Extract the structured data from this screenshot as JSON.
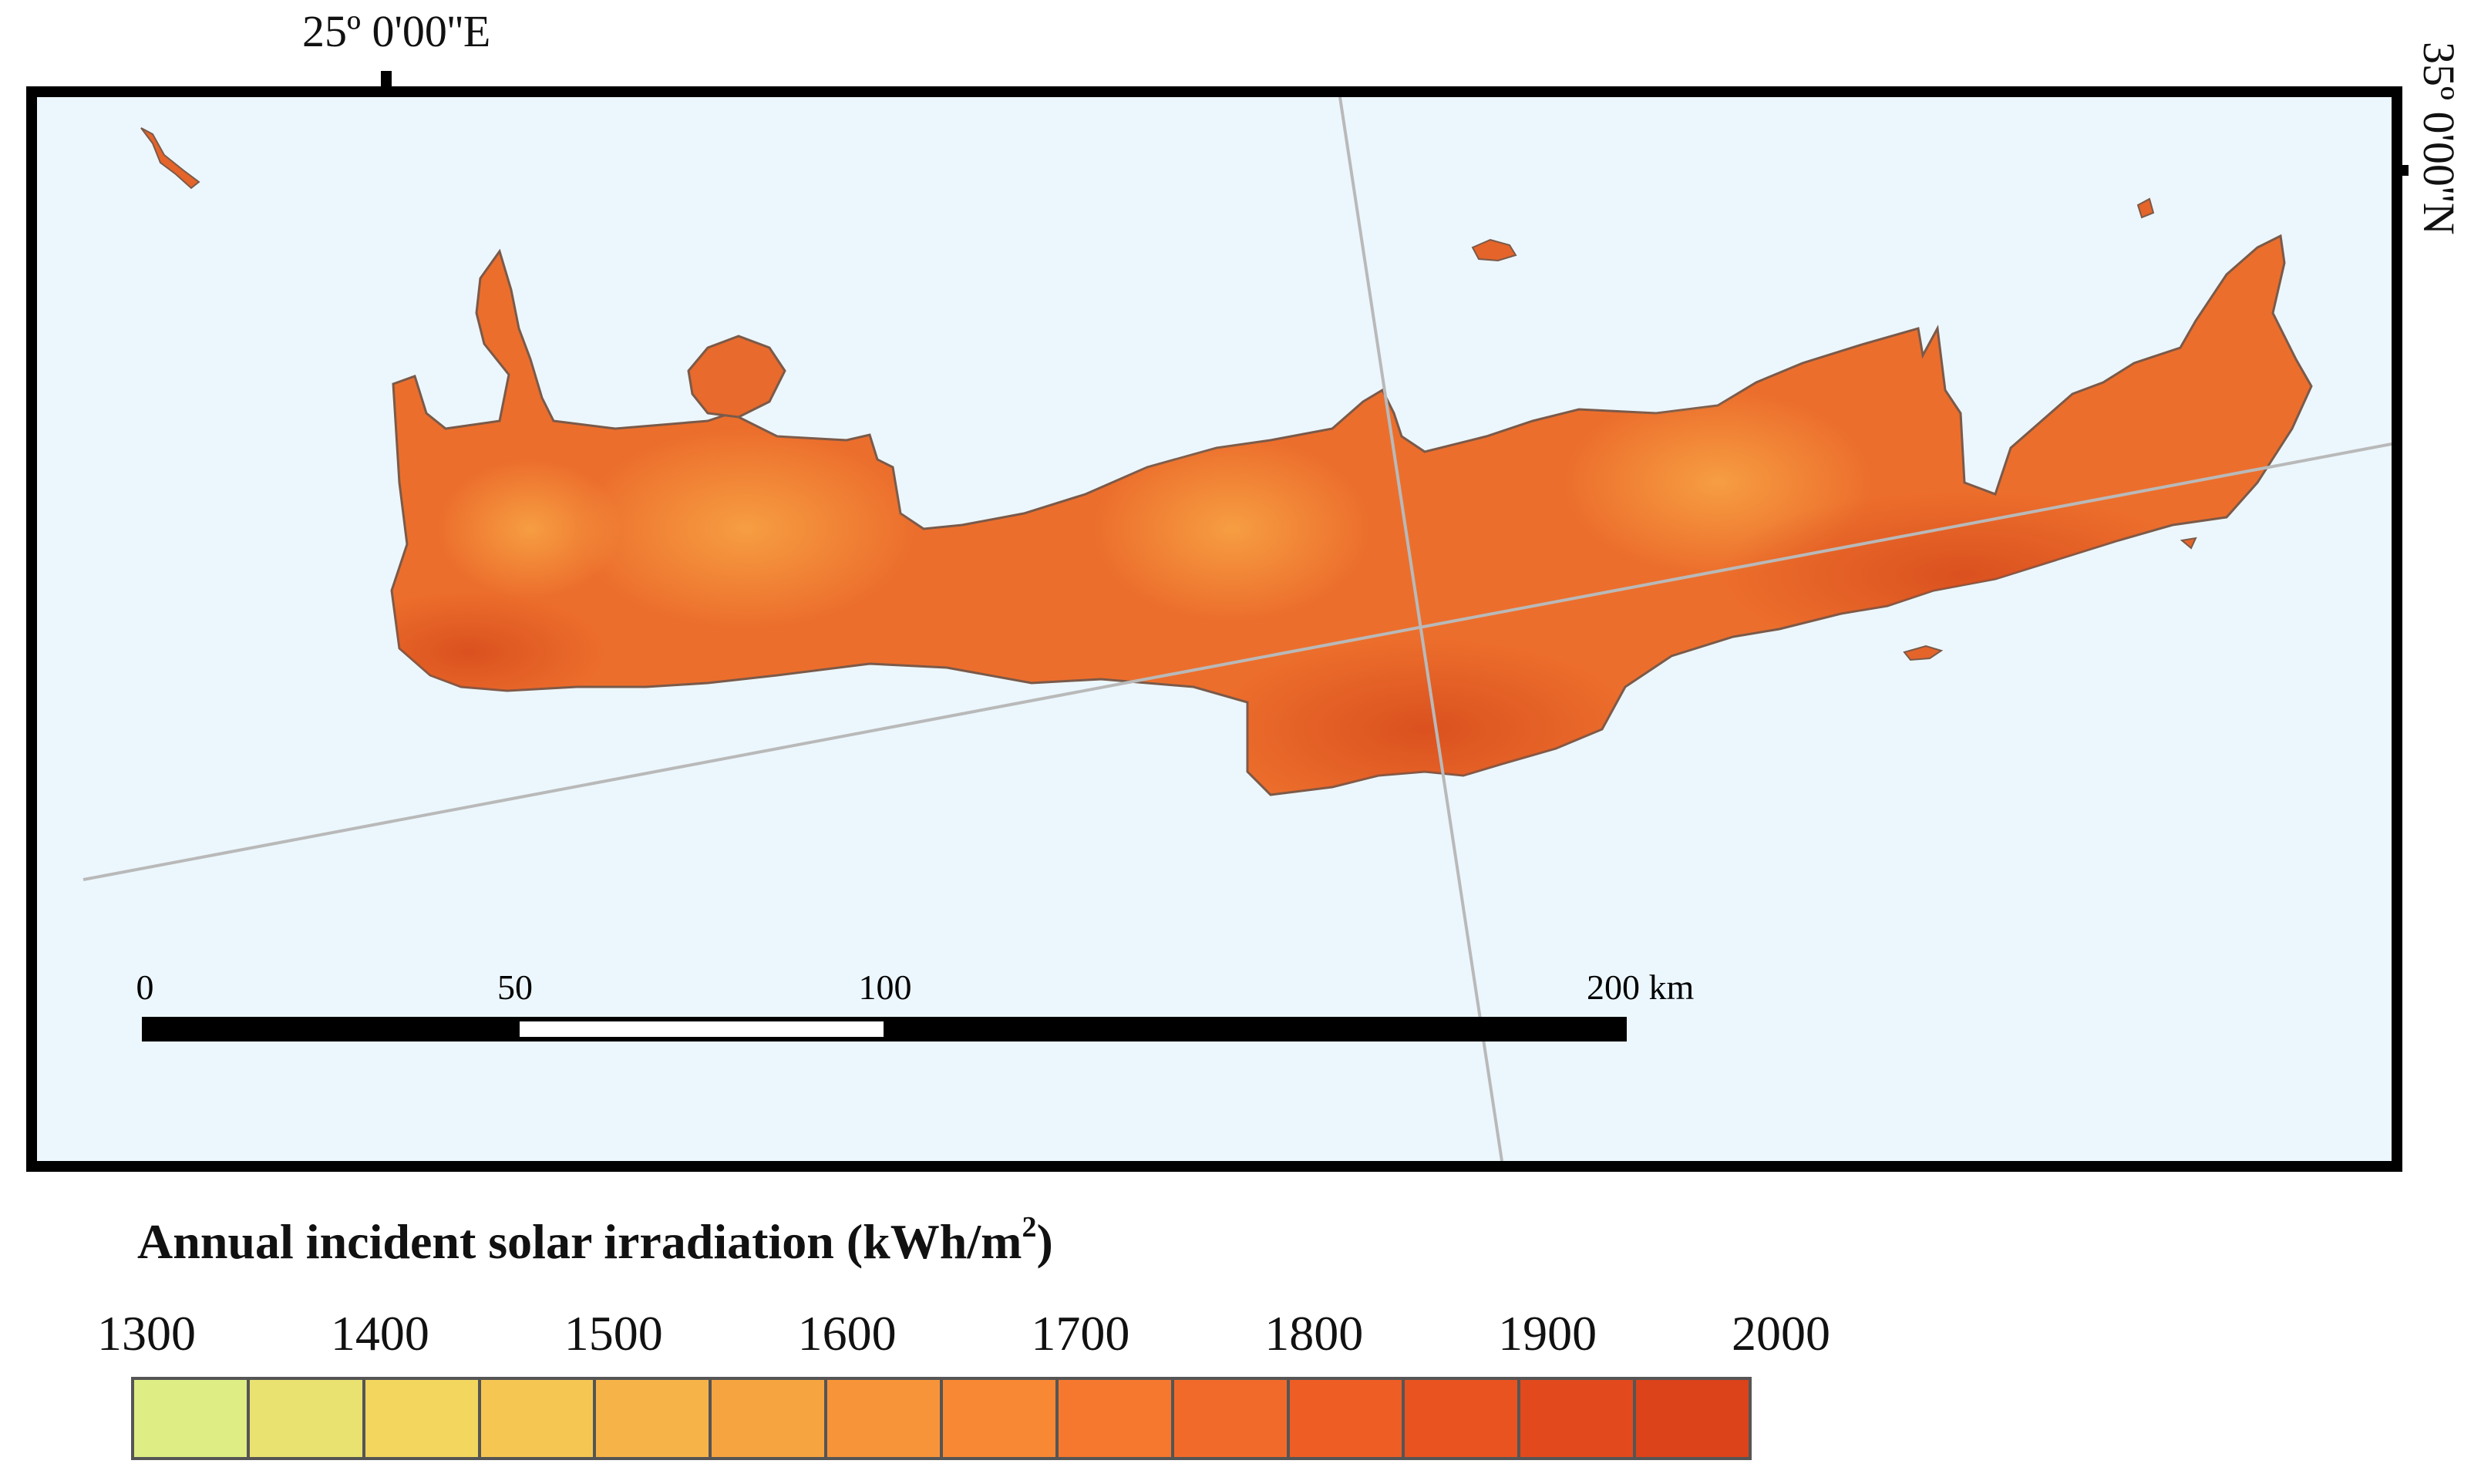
{
  "map": {
    "longitude_label": "25º 0'00''E",
    "latitude_label": "35º 0'00''N",
    "scale_bar": {
      "labels": [
        "0",
        "50",
        "100",
        "200 km"
      ],
      "values_km": [
        0,
        50,
        100,
        200
      ]
    }
  },
  "legend": {
    "title": "Annual incident solar irradiation (kWh/m",
    "title_superscript": "2",
    "title_suffix": ")",
    "labels": [
      "1300",
      "1400",
      "1500",
      "1600",
      "1700",
      "1800",
      "1900",
      "2000"
    ],
    "colors": [
      "#dfed85",
      "#e9e270",
      "#f2d65e",
      "#f5c752",
      "#f6b448",
      "#f6a440",
      "#f7943a",
      "#f88833",
      "#f5782e",
      "#f26a29",
      "#ee5d24",
      "#e85320",
      "#e24a1d",
      "#dc431a"
    ]
  },
  "colors": {
    "sea": "#ecf7fd",
    "land_base": "#ec6e2c",
    "land_high": "#f59a3c",
    "land_low": "#dd4f1e",
    "graticule": "#b9b9b9",
    "frame": "#000000"
  }
}
